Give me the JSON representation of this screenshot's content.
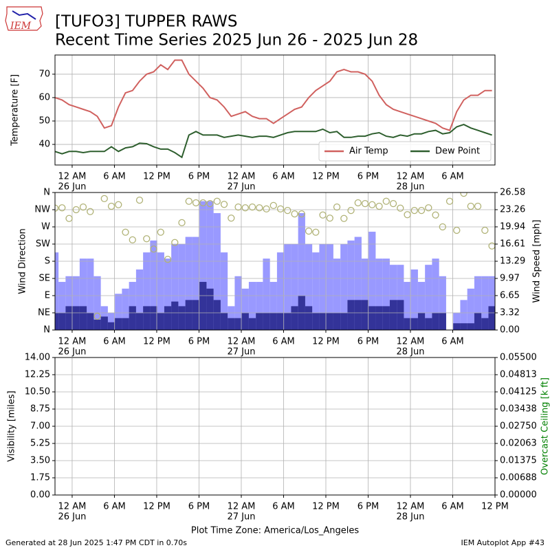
{
  "chart_data": [
    {
      "type": "line",
      "title": "[TUFO3] TUPPER RAWS",
      "subtitle": "Recent Time Series 2025 Jun 26 - 2025 Jun 28",
      "ylabel": "Temperature [F]",
      "grid": true,
      "legend": "lower right",
      "xlim": [
        "2025-06-25 21:34",
        "2025-06-28 12:00"
      ],
      "ylim": [
        31.2,
        78.2
      ],
      "yticks": [
        40,
        50,
        60,
        70
      ],
      "xticks": [
        {
          "value": "2025-06-26 00:00",
          "label": "12 AM",
          "date": "26 Jun"
        },
        {
          "value": "2025-06-26 06:00",
          "label": "6 AM"
        },
        {
          "value": "2025-06-26 12:00",
          "label": "12 PM"
        },
        {
          "value": "2025-06-26 18:00",
          "label": "6 PM"
        },
        {
          "value": "2025-06-27 00:00",
          "label": "12 AM",
          "date": "27 Jun"
        },
        {
          "value": "2025-06-27 06:00",
          "label": "6 AM"
        },
        {
          "value": "2025-06-27 12:00",
          "label": "12 PM"
        },
        {
          "value": "2025-06-27 18:00",
          "label": "6 PM"
        },
        {
          "value": "2025-06-28 00:00",
          "label": "12 AM",
          "date": "28 Jun"
        },
        {
          "value": "2025-06-28 06:00",
          "label": "6 AM"
        }
      ],
      "x": [
        "2025-06-25 21:34",
        "2025-06-25 22:34",
        "2025-06-25 23:34",
        "2025-06-26 00:34",
        "2025-06-26 01:34",
        "2025-06-26 02:34",
        "2025-06-26 03:34",
        "2025-06-26 04:34",
        "2025-06-26 05:34",
        "2025-06-26 06:34",
        "2025-06-26 07:34",
        "2025-06-26 08:34",
        "2025-06-26 09:34",
        "2025-06-26 10:34",
        "2025-06-26 11:34",
        "2025-06-26 12:34",
        "2025-06-26 13:34",
        "2025-06-26 14:34",
        "2025-06-26 15:34",
        "2025-06-26 16:34",
        "2025-06-26 17:34",
        "2025-06-26 18:34",
        "2025-06-26 19:34",
        "2025-06-26 20:34",
        "2025-06-26 21:34",
        "2025-06-26 22:34",
        "2025-06-26 23:34",
        "2025-06-27 00:34",
        "2025-06-27 01:34",
        "2025-06-27 02:34",
        "2025-06-27 03:34",
        "2025-06-27 04:34",
        "2025-06-27 05:34",
        "2025-06-27 06:34",
        "2025-06-27 07:34",
        "2025-06-27 08:34",
        "2025-06-27 09:34",
        "2025-06-27 10:34",
        "2025-06-27 11:34",
        "2025-06-27 12:34",
        "2025-06-27 13:34",
        "2025-06-27 14:34",
        "2025-06-27 15:34",
        "2025-06-27 16:34",
        "2025-06-27 17:34",
        "2025-06-27 18:34",
        "2025-06-27 19:34",
        "2025-06-27 20:34",
        "2025-06-27 21:34",
        "2025-06-27 22:34",
        "2025-06-27 23:34",
        "2025-06-28 00:34",
        "2025-06-28 01:34",
        "2025-06-28 02:34",
        "2025-06-28 03:34",
        "2025-06-28 04:34",
        "2025-06-28 05:34",
        "2025-06-28 06:34",
        "2025-06-28 07:34",
        "2025-06-28 08:34",
        "2025-06-28 09:34",
        "2025-06-28 10:34",
        "2025-06-28 11:34"
      ],
      "series": [
        {
          "name": "Air Temp",
          "color": "#d0605e",
          "values": [
            60,
            59,
            57,
            56,
            55,
            54,
            52,
            47,
            48,
            56,
            62,
            63,
            67,
            70,
            71,
            74,
            72,
            76,
            76,
            70,
            67,
            64,
            60,
            59,
            56,
            52,
            53,
            54,
            52,
            51,
            51,
            49,
            51,
            53,
            55,
            56,
            60,
            63,
            65,
            67,
            71,
            72,
            71,
            71,
            70,
            67,
            61,
            57,
            55,
            54,
            53,
            52,
            51,
            50,
            49,
            47,
            46,
            54,
            59,
            61,
            61,
            63,
            63
          ]
        },
        {
          "name": "Dew Point",
          "color": "#2d5e2d",
          "values": [
            37,
            36,
            37,
            37,
            36.5,
            37,
            37,
            37,
            39,
            37,
            38.5,
            39,
            40.5,
            40.3,
            39,
            38,
            38,
            36.5,
            34.5,
            44,
            45.5,
            44,
            44,
            44,
            43,
            43.5,
            44,
            43.5,
            43,
            43.5,
            43.5,
            43,
            44,
            45,
            45.5,
            45.5,
            45.5,
            45.5,
            46.5,
            45,
            45.5,
            43,
            43,
            43.5,
            43.5,
            44.5,
            45,
            43.5,
            43,
            44,
            43.5,
            44.5,
            44.5,
            45.5,
            46,
            44.5,
            45,
            47.5,
            48.5,
            47,
            46,
            45,
            44
          ]
        }
      ]
    },
    {
      "type": "wind",
      "ylabel": "Wind Direction",
      "y2label": "Wind Speed [mph]",
      "grid": true,
      "xlim": [
        "2025-06-25 21:34",
        "2025-06-28 12:00"
      ],
      "ylim": [
        0,
        360
      ],
      "yticks": [
        {
          "value": 0,
          "label": "N"
        },
        {
          "value": 45,
          "label": "NE"
        },
        {
          "value": 90,
          "label": "E"
        },
        {
          "value": 135,
          "label": "SE"
        },
        {
          "value": 180,
          "label": "S"
        },
        {
          "value": 225,
          "label": "SW"
        },
        {
          "value": 270,
          "label": "W"
        },
        {
          "value": 315,
          "label": "NW"
        },
        {
          "value": 360,
          "label": "N"
        }
      ],
      "y2lim": [
        0,
        26.58
      ],
      "y2ticks": [
        {
          "value": 0,
          "label": "0.00"
        },
        3.32,
        6.65,
        9.97,
        13.29,
        16.61,
        19.94,
        23.26,
        26.58
      ],
      "xticks": [
        {
          "value": "2025-06-26 00:00",
          "label": "12 AM",
          "date": "26 Jun"
        },
        {
          "value": "2025-06-26 06:00",
          "label": "6 AM"
        },
        {
          "value": "2025-06-26 12:00",
          "label": "12 PM"
        },
        {
          "value": "2025-06-26 18:00",
          "label": "6 PM"
        },
        {
          "value": "2025-06-27 00:00",
          "label": "12 AM",
          "date": "27 Jun"
        },
        {
          "value": "2025-06-27 06:00",
          "label": "6 AM"
        },
        {
          "value": "2025-06-27 12:00",
          "label": "12 PM"
        },
        {
          "value": "2025-06-27 18:00",
          "label": "6 PM"
        },
        {
          "value": "2025-06-28 00:00",
          "label": "12 AM",
          "date": "28 Jun"
        },
        {
          "value": "2025-06-28 06:00",
          "label": "6 AM"
        }
      ],
      "x": [
        "2025-06-25 21:34",
        "2025-06-25 22:34",
        "2025-06-25 23:34",
        "2025-06-26 00:34",
        "2025-06-26 01:34",
        "2025-06-26 02:34",
        "2025-06-26 03:34",
        "2025-06-26 04:34",
        "2025-06-26 05:34",
        "2025-06-26 06:34",
        "2025-06-26 07:34",
        "2025-06-26 08:34",
        "2025-06-26 09:34",
        "2025-06-26 10:34",
        "2025-06-26 11:34",
        "2025-06-26 12:34",
        "2025-06-26 13:34",
        "2025-06-26 14:34",
        "2025-06-26 15:34",
        "2025-06-26 16:34",
        "2025-06-26 17:34",
        "2025-06-26 18:34",
        "2025-06-26 19:34",
        "2025-06-26 20:34",
        "2025-06-26 21:34",
        "2025-06-26 22:34",
        "2025-06-26 23:34",
        "2025-06-27 00:34",
        "2025-06-27 01:34",
        "2025-06-27 02:34",
        "2025-06-27 03:34",
        "2025-06-27 04:34",
        "2025-06-27 05:34",
        "2025-06-27 06:34",
        "2025-06-27 07:34",
        "2025-06-27 08:34",
        "2025-06-27 09:34",
        "2025-06-27 10:34",
        "2025-06-27 11:34",
        "2025-06-27 12:34",
        "2025-06-27 13:34",
        "2025-06-27 14:34",
        "2025-06-27 15:34",
        "2025-06-27 16:34",
        "2025-06-27 17:34",
        "2025-06-27 18:34",
        "2025-06-27 19:34",
        "2025-06-27 20:34",
        "2025-06-27 21:34",
        "2025-06-27 22:34",
        "2025-06-27 23:34",
        "2025-06-28 00:34",
        "2025-06-28 01:34",
        "2025-06-28 02:34",
        "2025-06-28 03:34",
        "2025-06-28 04:34",
        "2025-06-28 05:34",
        "2025-06-28 06:34",
        "2025-06-28 07:34",
        "2025-06-28 08:34",
        "2025-06-28 09:34",
        "2025-06-28 10:34",
        "2025-06-28 11:34"
      ],
      "series": [
        {
          "mark": "bar",
          "axis": "y2",
          "color": "#9999ff",
          "values": [
            15,
            9.3,
            10.4,
            10.4,
            13.8,
            13.8,
            10.4,
            4.6,
            3.3,
            7.0,
            8.0,
            9.3,
            11.7,
            15.0,
            17.3,
            15.0,
            13.8,
            16.6,
            16.6,
            18.0,
            18.0,
            24.9,
            24.9,
            22.6,
            15.0,
            4.6,
            10.4,
            8.0,
            9.3,
            9.3,
            13.8,
            9.3,
            15.0,
            16.6,
            16.6,
            22.6,
            16.6,
            15.0,
            16.6,
            16.6,
            13.8,
            16.6,
            17.3,
            18.0,
            13.8,
            19.0,
            13.8,
            13.8,
            12.6,
            12.6,
            9.3,
            11.7,
            9.3,
            12.6,
            13.8,
            10.4,
            0,
            3.3,
            5.8,
            8.0,
            10.4,
            10.4,
            10.4
          ]
        },
        {
          "mark": "bar",
          "axis": "y2",
          "color": "#333399",
          "values": [
            3.3,
            3.3,
            4.6,
            4.6,
            4.6,
            3.3,
            2.0,
            2.6,
            1.5,
            2.3,
            2.3,
            4.6,
            3.3,
            4.6,
            4.6,
            3.3,
            4.6,
            5.5,
            4.6,
            5.8,
            5.8,
            9.3,
            8.0,
            5.8,
            3.3,
            2.3,
            2.3,
            3.3,
            2.3,
            3.3,
            3.3,
            3.3,
            3.3,
            3.3,
            4.6,
            6.6,
            4.6,
            3.3,
            3.3,
            3.3,
            3.3,
            3.3,
            5.8,
            5.8,
            5.8,
            4.6,
            4.6,
            4.6,
            5.8,
            5.8,
            2.3,
            2.3,
            3.3,
            2.3,
            3.3,
            3.3,
            0,
            1.3,
            1.3,
            1.3,
            3.3,
            2.3,
            4.6
          ]
        },
        {
          "mark": "scatter",
          "color": "#b0b276",
          "values": [
            319,
            320,
            292,
            315,
            322,
            310,
            36,
            344,
            324,
            328,
            256,
            236,
            340,
            239,
            212,
            256,
            185,
            229,
            281,
            337,
            333,
            333,
            331,
            337,
            329,
            293,
            322,
            320,
            322,
            320,
            317,
            326,
            317,
            313,
            304,
            304,
            259,
            256,
            301,
            293,
            322,
            292,
            313,
            333,
            331,
            328,
            324,
            337,
            331,
            319,
            302,
            313,
            313,
            320,
            301,
            270,
            337,
            261,
            358,
            324,
            324,
            261,
            220
          ]
        }
      ]
    },
    {
      "type": "line",
      "ylabel": "Visibility [miles]",
      "y2label": "Overcast Ceiling [k ft]",
      "y2color": "#008000",
      "grid": true,
      "xlabel": "Plot Time Zone: America/Los_Angeles",
      "xlim": [
        "2025-06-25 21:34",
        "2025-06-28 12:00"
      ],
      "ylim": [
        0,
        14
      ],
      "yticks": [
        {
          "value": 0,
          "label": "0.00"
        },
        1.75,
        {
          "value": 3.5,
          "label": "3.50"
        },
        5.25,
        {
          "value": 7,
          "label": "7.00"
        },
        8.75,
        {
          "value": 10.5,
          "label": "10.50"
        },
        12.25,
        {
          "value": 14,
          "label": "14.00"
        }
      ],
      "y2lim": [
        0,
        0.055
      ],
      "y2ticks": [
        {
          "value": 0,
          "label": "0.00000"
        },
        {
          "value": 0.006875,
          "label": "0.00688"
        },
        0.01375,
        {
          "value": 0.020625,
          "label": "0.02063"
        },
        {
          "value": 0.0275,
          "label": "0.02750"
        },
        {
          "value": 0.034375,
          "label": "0.03438"
        },
        0.04125,
        {
          "value": 0.048125,
          "label": "0.04813"
        },
        {
          "value": 0.055,
          "label": "0.05500"
        }
      ],
      "xticks": [
        {
          "value": "2025-06-26 00:00",
          "label": "12 AM",
          "date": "26 Jun"
        },
        {
          "value": "2025-06-26 06:00",
          "label": "6 AM"
        },
        {
          "value": "2025-06-26 12:00",
          "label": "12 PM"
        },
        {
          "value": "2025-06-26 18:00",
          "label": "6 PM"
        },
        {
          "value": "2025-06-27 00:00",
          "label": "12 AM",
          "date": "27 Jun"
        },
        {
          "value": "2025-06-27 06:00",
          "label": "6 AM"
        },
        {
          "value": "2025-06-27 12:00",
          "label": "12 PM"
        },
        {
          "value": "2025-06-27 18:00",
          "label": "6 PM"
        },
        {
          "value": "2025-06-28 00:00",
          "label": "12 AM",
          "date": "28 Jun"
        },
        {
          "value": "2025-06-28 06:00",
          "label": "6 AM"
        },
        {
          "value": "2025-06-28 12:00",
          "label": "12 PM"
        }
      ]
    }
  ],
  "logo": "IEM",
  "footer": {
    "left": "Generated at 28 Jun 2025 1:47 PM CDT in 0.70s",
    "right": "IEM Autoplot App #43"
  }
}
